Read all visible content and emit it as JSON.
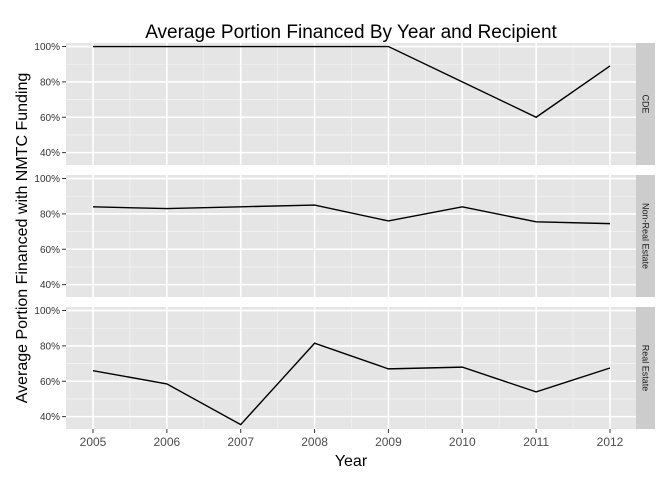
{
  "chart_data": {
    "type": "line",
    "title": "Average Portion Financed By Year and Recipient",
    "xlabel": "Year",
    "ylabel": "Average Portion Financed with NMTC Funding",
    "x": [
      2005,
      2006,
      2007,
      2008,
      2009,
      2010,
      2011,
      2012
    ],
    "x_ticks": [
      "2005",
      "2006",
      "2007",
      "2008",
      "2009",
      "2010",
      "2011",
      "2012"
    ],
    "y_ticks": [
      "40%",
      "60%",
      "80%",
      "100%"
    ],
    "ylim": [
      0.33,
      1.02
    ],
    "grid": true,
    "facets": [
      {
        "label": "CDE",
        "values": [
          1.0,
          1.0,
          1.0,
          1.0,
          1.0,
          0.8,
          0.6,
          0.89
        ]
      },
      {
        "label": "Non-Real Estate",
        "values": [
          0.84,
          0.83,
          0.84,
          0.85,
          0.76,
          0.84,
          0.755,
          0.745
        ]
      },
      {
        "label": "Real Estate",
        "values": [
          0.66,
          0.585,
          0.355,
          0.815,
          0.67,
          0.68,
          0.54,
          0.675
        ]
      }
    ],
    "colors": {
      "panel": "#e5e5e5",
      "grid_major": "#ffffff",
      "grid_minor": "#f2f2f2",
      "strip": "#cccccc",
      "line": "#000000"
    }
  }
}
